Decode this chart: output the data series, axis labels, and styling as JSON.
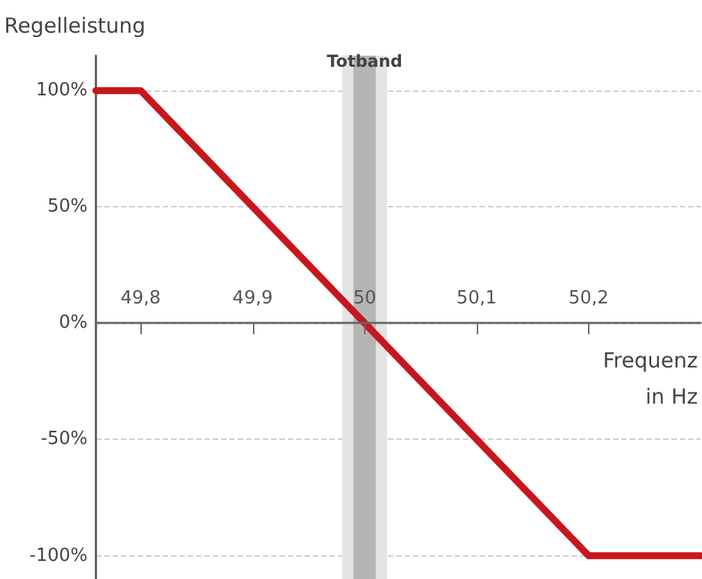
{
  "chart_data": {
    "type": "line",
    "ylabel": "Regelleistung",
    "xlabel": "Frequenz\nin Hz",
    "x": [
      49.76,
      49.8,
      50.2,
      50.3
    ],
    "series": [
      {
        "color": "#c8161d",
        "values": [
          100,
          100,
          -100,
          -100
        ]
      }
    ],
    "xlim": [
      49.76,
      50.3
    ],
    "xticks": [
      {
        "value": 49.8,
        "label": "49,8"
      },
      {
        "value": 49.9,
        "label": "49,9"
      },
      {
        "value": 50,
        "label": "50"
      },
      {
        "value": 50.1,
        "label": "50,1"
      },
      {
        "value": 50.2,
        "label": "50,2"
      }
    ],
    "ylim": [
      -110,
      115
    ],
    "yticks": [
      {
        "value": -100,
        "label": "-100%"
      },
      {
        "value": -50,
        "label": "-50%"
      },
      {
        "value": 0,
        "label": "0%"
      },
      {
        "value": 50,
        "label": "50%"
      },
      {
        "value": 100,
        "label": "100%"
      }
    ],
    "bands": [
      {
        "axis": "x",
        "from": 49.98,
        "to": 50.02,
        "label": "Totband",
        "color": "#e4e4e4"
      },
      {
        "axis": "x",
        "from": 49.99,
        "to": 50.01,
        "color": "#b5b5b5"
      }
    ],
    "grid": "y",
    "marker": "none",
    "line_style": "solid"
  }
}
